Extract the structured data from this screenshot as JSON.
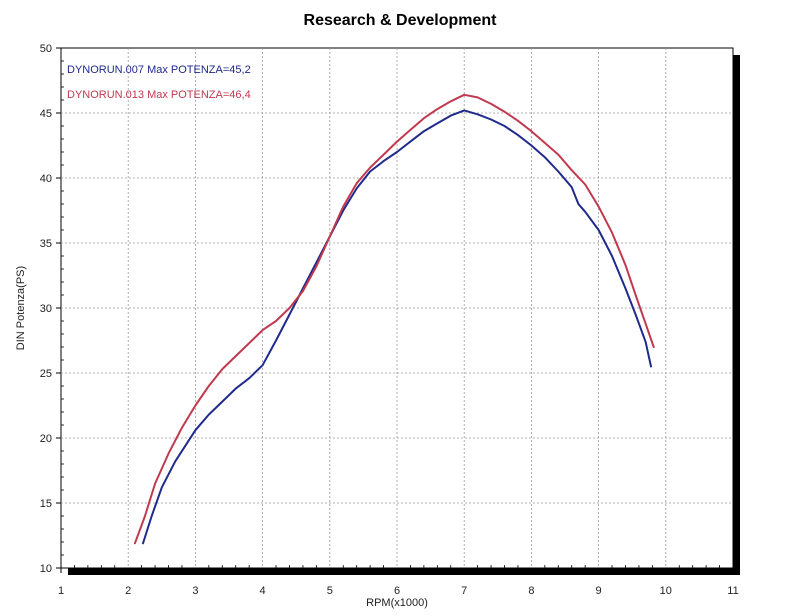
{
  "chart_data": {
    "type": "line",
    "title": "Research & Development",
    "xlabel": "RPM(x1000)",
    "ylabel": "DIN Potenza(PS)",
    "xlim": [
      1,
      11
    ],
    "ylim": [
      10,
      50
    ],
    "x_ticks": [
      1,
      2,
      3,
      4,
      5,
      6,
      7,
      8,
      9,
      10,
      11
    ],
    "y_ticks": [
      10,
      15,
      20,
      25,
      30,
      35,
      40,
      45,
      50
    ],
    "grid": true,
    "legend_position": "top-left",
    "series": [
      {
        "name": "DYNORUN.007  Max POTENZA=45,2",
        "color": "#1f2a8c",
        "points": [
          [
            2.22,
            11.9
          ],
          [
            2.35,
            14.0
          ],
          [
            2.5,
            16.2
          ],
          [
            2.7,
            18.2
          ],
          [
            2.9,
            19.8
          ],
          [
            3.0,
            20.6
          ],
          [
            3.2,
            21.8
          ],
          [
            3.4,
            22.8
          ],
          [
            3.6,
            23.8
          ],
          [
            3.8,
            24.6
          ],
          [
            4.0,
            25.6
          ],
          [
            4.2,
            27.5
          ],
          [
            4.4,
            29.5
          ],
          [
            4.6,
            31.5
          ],
          [
            4.8,
            33.5
          ],
          [
            5.0,
            35.5
          ],
          [
            5.2,
            37.5
          ],
          [
            5.4,
            39.2
          ],
          [
            5.6,
            40.5
          ],
          [
            5.8,
            41.3
          ],
          [
            6.0,
            42.0
          ],
          [
            6.2,
            42.8
          ],
          [
            6.4,
            43.6
          ],
          [
            6.6,
            44.2
          ],
          [
            6.8,
            44.8
          ],
          [
            7.0,
            45.2
          ],
          [
            7.2,
            44.9
          ],
          [
            7.4,
            44.5
          ],
          [
            7.6,
            44.0
          ],
          [
            7.8,
            43.3
          ],
          [
            8.0,
            42.5
          ],
          [
            8.2,
            41.6
          ],
          [
            8.4,
            40.5
          ],
          [
            8.6,
            39.3
          ],
          [
            8.7,
            38.0
          ],
          [
            8.8,
            37.4
          ],
          [
            9.0,
            36.0
          ],
          [
            9.2,
            34.0
          ],
          [
            9.4,
            31.5
          ],
          [
            9.55,
            29.5
          ],
          [
            9.7,
            27.4
          ],
          [
            9.78,
            25.5
          ]
        ]
      },
      {
        "name": "DYNORUN.013  Max POTENZA=46,4",
        "color": "#c0394f",
        "points": [
          [
            2.1,
            11.9
          ],
          [
            2.25,
            14.0
          ],
          [
            2.4,
            16.5
          ],
          [
            2.6,
            18.8
          ],
          [
            2.8,
            20.8
          ],
          [
            3.0,
            22.5
          ],
          [
            3.2,
            24.0
          ],
          [
            3.4,
            25.3
          ],
          [
            3.6,
            26.3
          ],
          [
            3.8,
            27.3
          ],
          [
            4.0,
            28.3
          ],
          [
            4.2,
            29.0
          ],
          [
            4.4,
            30.0
          ],
          [
            4.6,
            31.3
          ],
          [
            4.8,
            33.2
          ],
          [
            5.0,
            35.5
          ],
          [
            5.2,
            37.8
          ],
          [
            5.4,
            39.6
          ],
          [
            5.6,
            40.8
          ],
          [
            5.8,
            41.8
          ],
          [
            6.0,
            42.8
          ],
          [
            6.2,
            43.7
          ],
          [
            6.4,
            44.6
          ],
          [
            6.6,
            45.3
          ],
          [
            6.8,
            45.9
          ],
          [
            7.0,
            46.4
          ],
          [
            7.2,
            46.2
          ],
          [
            7.4,
            45.7
          ],
          [
            7.6,
            45.1
          ],
          [
            7.8,
            44.4
          ],
          [
            8.0,
            43.6
          ],
          [
            8.2,
            42.7
          ],
          [
            8.4,
            41.8
          ],
          [
            8.6,
            40.6
          ],
          [
            8.8,
            39.5
          ],
          [
            9.0,
            37.8
          ],
          [
            9.2,
            35.8
          ],
          [
            9.4,
            33.3
          ],
          [
            9.55,
            31.0
          ],
          [
            9.7,
            28.8
          ],
          [
            9.82,
            27.0
          ]
        ]
      }
    ]
  }
}
